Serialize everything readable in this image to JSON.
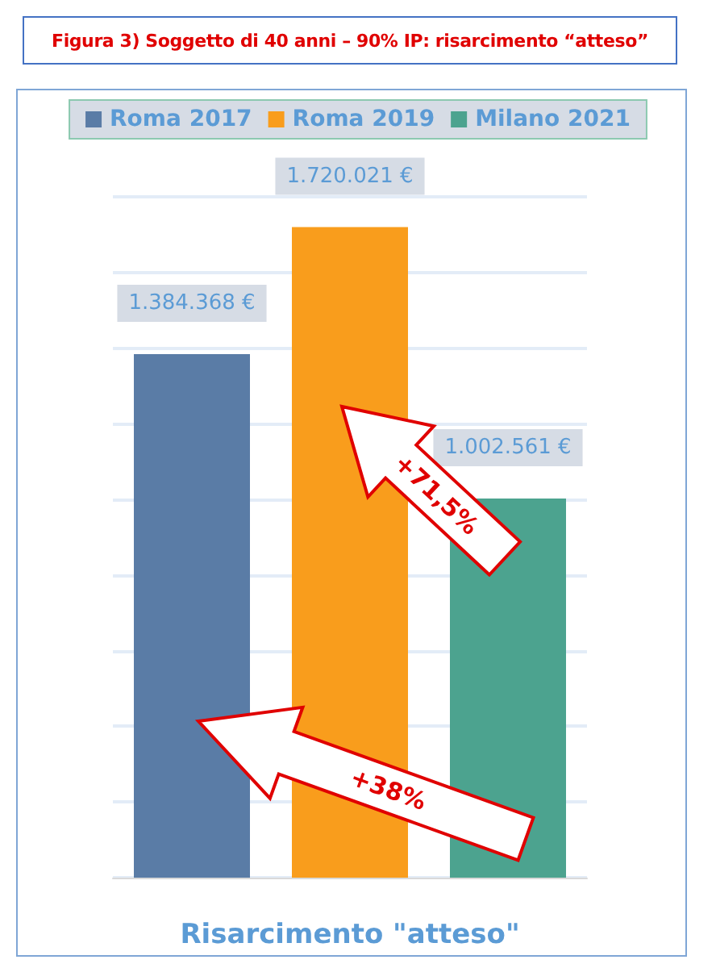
{
  "chart_data": {
    "type": "bar",
    "title": "Figura 3) Soggetto di 40 anni – 90% IP: risarcimento “atteso”",
    "xlabel": "Risarcimento \"atteso\"",
    "categories": [
      null,
      null,
      null
    ],
    "series": [
      {
        "name": "Roma 2017",
        "color": "#5a7ca6",
        "values": [
          1384368,
          null,
          null
        ],
        "value_labels": [
          "1.384.368 €",
          null,
          null
        ]
      },
      {
        "name": "Roma 2019",
        "color": "#f99d1c",
        "values": [
          null,
          1720021,
          null
        ],
        "value_labels": [
          null,
          "1.720.021 €",
          null
        ]
      },
      {
        "name": "Milano 2021",
        "color": "#4ca38f",
        "values": [
          null,
          null,
          1002561
        ],
        "value_labels": [
          null,
          null,
          "1.002.561 €"
        ]
      }
    ],
    "ylim": [
      0,
      1800000
    ],
    "yticks": [
      {
        "value": 0,
        "label": null
      },
      {
        "value": 200000,
        "label": null
      },
      {
        "value": 400000,
        "label": null
      },
      {
        "value": 600000,
        "label": null
      },
      {
        "value": 800000,
        "label": null
      },
      {
        "value": 1000000,
        "label": null
      },
      {
        "value": 1200000,
        "label": null
      },
      {
        "value": 1400000,
        "label": null
      },
      {
        "value": 1600000,
        "label": null
      },
      {
        "value": 1800000,
        "label": null
      }
    ],
    "stacked": true,
    "grid": "y",
    "legend": "top",
    "annotations": [
      "+38%",
      "+71,5%"
    ]
  }
}
